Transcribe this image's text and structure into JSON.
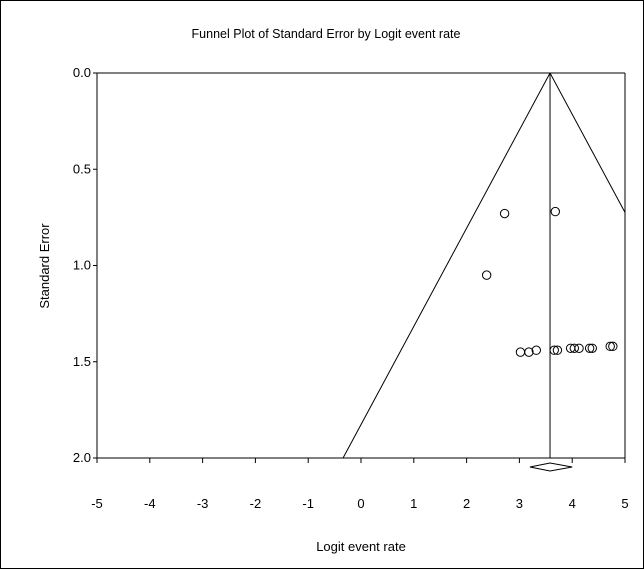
{
  "chart_data": {
    "type": "scatter",
    "title": "Funnel Plot of Standard Error by Logit event rate",
    "xlabel": "Logit event rate",
    "ylabel": "Standard Error",
    "xlim": [
      -5,
      5
    ],
    "ylim": [
      0,
      2
    ],
    "y_inverted": true,
    "xticks": [
      -5,
      -4,
      -3,
      -2,
      -1,
      0,
      1,
      2,
      3,
      4,
      5
    ],
    "yticks": [
      "0.0",
      "0.5",
      "1.0",
      "1.5",
      "2.0"
    ],
    "grid": false,
    "summary_estimate": 3.58,
    "summary_ci": [
      3.2,
      4.0
    ],
    "points": [
      {
        "x": 2.72,
        "y": 0.73
      },
      {
        "x": 3.68,
        "y": 0.72
      },
      {
        "x": 2.38,
        "y": 1.05
      },
      {
        "x": 3.02,
        "y": 1.45
      },
      {
        "x": 3.18,
        "y": 1.45
      },
      {
        "x": 3.32,
        "y": 1.44
      },
      {
        "x": 3.66,
        "y": 1.44
      },
      {
        "x": 3.72,
        "y": 1.44
      },
      {
        "x": 3.97,
        "y": 1.43
      },
      {
        "x": 4.04,
        "y": 1.43
      },
      {
        "x": 4.13,
        "y": 1.43
      },
      {
        "x": 4.33,
        "y": 1.43
      },
      {
        "x": 4.38,
        "y": 1.43
      },
      {
        "x": 4.72,
        "y": 1.42
      },
      {
        "x": 4.77,
        "y": 1.42
      }
    ]
  }
}
